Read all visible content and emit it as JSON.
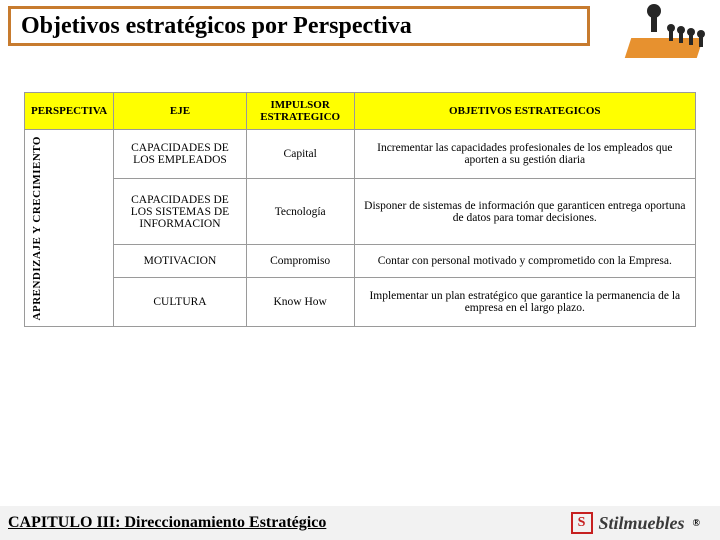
{
  "colors": {
    "title_border": "#c77b2e",
    "header_bg": "#ffff00",
    "platform": "#e7912f",
    "footer_bg": "#f2f2f2",
    "logo_red": "#c62020",
    "logo_text": "#3a3a3a"
  },
  "title": "Objetivos estratégicos por Perspectiva",
  "table": {
    "headers": {
      "perspectiva": "PERSPECTIVA",
      "eje": "EJE",
      "impulsor": "IMPULSOR ESTRATEGICO",
      "objetivos": "OBJETIVOS ESTRATEGICOS"
    },
    "perspectiva_label": "APRENDIZAJE Y CRECIMIENTO",
    "rows": [
      {
        "eje": "CAPACIDADES DE LOS EMPLEADOS",
        "impulsor": "Capital",
        "objetivo": "Incrementar las capacidades profesionales de los empleados que aporten a su gestión diaria"
      },
      {
        "eje": "CAPACIDADES DE LOS SISTEMAS DE INFORMACION",
        "impulsor": "Tecnología",
        "objetivo": "Disponer de sistemas de información que garanticen entrega oportuna de datos para tomar decisiones."
      },
      {
        "eje": "MOTIVACION",
        "impulsor": "Compromiso",
        "objetivo": "Contar con personal motivado y comprometido con la Empresa."
      },
      {
        "eje": "CULTURA",
        "impulsor": "Know How",
        "objetivo": "Implementar un plan estratégico que garantice la permanencia de la empresa en el largo plazo."
      }
    ]
  },
  "footer": "CAPITULO III: Direccionamiento Estratégico",
  "logo": {
    "mark": "S",
    "name": "Stilmuebles",
    "r": "®"
  }
}
